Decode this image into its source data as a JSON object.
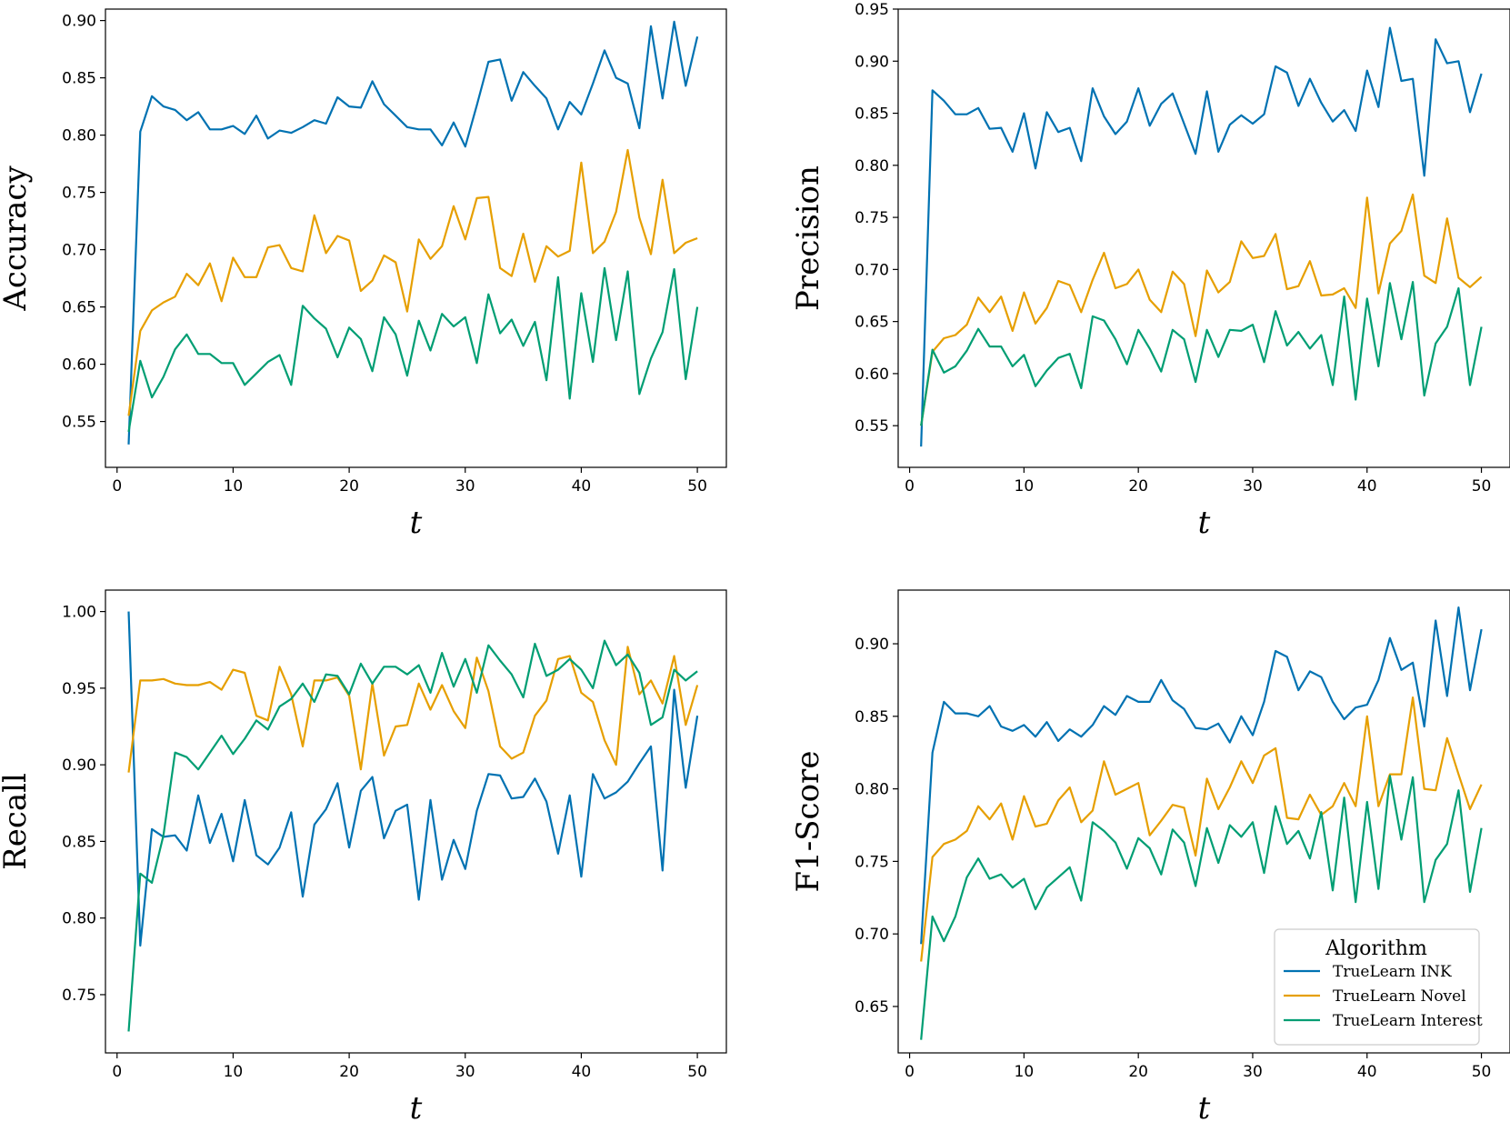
{
  "legend": {
    "title": "Algorithm",
    "panel": 3,
    "placement": "lower-right"
  },
  "chart_data": [
    {
      "type": "line",
      "ylabel": "Accuracy",
      "xlabel": "t",
      "xlim": [
        -1,
        52.5
      ],
      "ylim": [
        0.51,
        0.91
      ],
      "xticks": [
        "0",
        "10",
        "20",
        "30",
        "40",
        "50"
      ],
      "yticks": [
        "0.55",
        "0.60",
        "0.65",
        "0.70",
        "0.75",
        "0.80",
        "0.85",
        "0.90"
      ],
      "series": [
        {
          "name": "TrueLearn INK",
          "color": "#0072b2",
          "values": [
            0.53,
            0.803,
            0.834,
            0.825,
            0.822,
            0.813,
            0.82,
            0.805,
            0.805,
            0.808,
            0.801,
            0.817,
            0.797,
            0.804,
            0.802,
            0.807,
            0.813,
            0.81,
            0.833,
            0.825,
            0.824,
            0.847,
            0.827,
            0.817,
            0.807,
            0.805,
            0.805,
            0.791,
            0.811,
            0.79,
            0.826,
            0.864,
            0.866,
            0.83,
            0.855,
            0.843,
            0.832,
            0.805,
            0.829,
            0.818,
            0.845,
            0.874,
            0.85,
            0.845,
            0.806,
            0.895,
            0.832,
            0.899,
            0.843,
            0.886
          ]
        },
        {
          "name": "TrueLearn Novel",
          "color": "#e69f00",
          "values": [
            0.555,
            0.629,
            0.647,
            0.654,
            0.659,
            0.679,
            0.669,
            0.688,
            0.655,
            0.693,
            0.676,
            0.676,
            0.702,
            0.704,
            0.684,
            0.681,
            0.73,
            0.697,
            0.712,
            0.708,
            0.664,
            0.673,
            0.695,
            0.689,
            0.646,
            0.709,
            0.692,
            0.703,
            0.738,
            0.709,
            0.745,
            0.746,
            0.684,
            0.677,
            0.714,
            0.672,
            0.703,
            0.694,
            0.699,
            0.776,
            0.697,
            0.707,
            0.733,
            0.787,
            0.728,
            0.696,
            0.761,
            0.697,
            0.706,
            0.71
          ]
        },
        {
          "name": "TrueLearn Interest",
          "color": "#009e73",
          "values": [
            0.541,
            0.603,
            0.571,
            0.589,
            0.613,
            0.626,
            0.609,
            0.609,
            0.601,
            0.601,
            0.582,
            0.592,
            0.602,
            0.608,
            0.582,
            0.651,
            0.64,
            0.631,
            0.606,
            0.632,
            0.622,
            0.594,
            0.641,
            0.626,
            0.59,
            0.638,
            0.612,
            0.644,
            0.633,
            0.641,
            0.601,
            0.661,
            0.627,
            0.639,
            0.616,
            0.637,
            0.586,
            0.676,
            0.57,
            0.662,
            0.602,
            0.684,
            0.621,
            0.681,
            0.574,
            0.605,
            0.628,
            0.683,
            0.587,
            0.65
          ]
        }
      ]
    },
    {
      "type": "line",
      "ylabel": "Precision",
      "xlabel": "t",
      "xlim": [
        -1,
        52.5
      ],
      "ylim": [
        0.51,
        0.95
      ],
      "xticks": [
        "0",
        "10",
        "20",
        "30",
        "40",
        "50"
      ],
      "yticks": [
        "0.55",
        "0.60",
        "0.65",
        "0.70",
        "0.75",
        "0.80",
        "0.85",
        "0.90",
        "0.95"
      ],
      "series": [
        {
          "name": "TrueLearn INK",
          "color": "#0072b2",
          "values": [
            0.53,
            0.872,
            0.862,
            0.849,
            0.849,
            0.855,
            0.835,
            0.836,
            0.813,
            0.85,
            0.797,
            0.851,
            0.832,
            0.836,
            0.804,
            0.874,
            0.847,
            0.83,
            0.842,
            0.874,
            0.838,
            0.859,
            0.869,
            0.84,
            0.811,
            0.871,
            0.813,
            0.839,
            0.848,
            0.84,
            0.849,
            0.895,
            0.889,
            0.857,
            0.883,
            0.86,
            0.842,
            0.853,
            0.833,
            0.891,
            0.856,
            0.932,
            0.881,
            0.883,
            0.79,
            0.921,
            0.898,
            0.9,
            0.851,
            0.888
          ]
        },
        {
          "name": "TrueLearn Novel",
          "color": "#e69f00",
          "values": [
            0.55,
            0.621,
            0.634,
            0.637,
            0.647,
            0.673,
            0.659,
            0.674,
            0.641,
            0.678,
            0.648,
            0.663,
            0.689,
            0.685,
            0.659,
            0.69,
            0.716,
            0.682,
            0.686,
            0.7,
            0.671,
            0.659,
            0.698,
            0.686,
            0.636,
            0.699,
            0.678,
            0.688,
            0.727,
            0.711,
            0.713,
            0.734,
            0.681,
            0.684,
            0.708,
            0.675,
            0.676,
            0.682,
            0.663,
            0.769,
            0.677,
            0.725,
            0.737,
            0.772,
            0.694,
            0.687,
            0.749,
            0.692,
            0.683,
            0.693
          ]
        },
        {
          "name": "TrueLearn Interest",
          "color": "#009e73",
          "values": [
            0.55,
            0.623,
            0.601,
            0.607,
            0.622,
            0.643,
            0.626,
            0.626,
            0.607,
            0.618,
            0.588,
            0.603,
            0.615,
            0.619,
            0.586,
            0.655,
            0.651,
            0.633,
            0.609,
            0.642,
            0.624,
            0.602,
            0.642,
            0.633,
            0.592,
            0.642,
            0.616,
            0.642,
            0.641,
            0.647,
            0.611,
            0.66,
            0.627,
            0.64,
            0.624,
            0.637,
            0.589,
            0.674,
            0.575,
            0.672,
            0.607,
            0.687,
            0.633,
            0.688,
            0.579,
            0.629,
            0.645,
            0.682,
            0.589,
            0.645
          ]
        }
      ]
    },
    {
      "type": "line",
      "ylabel": "Recall",
      "xlabel": "t",
      "xlim": [
        -1,
        52.5
      ],
      "ylim": [
        0.712,
        1.014
      ],
      "xticks": [
        "0",
        "10",
        "20",
        "30",
        "40",
        "50"
      ],
      "yticks": [
        "0.75",
        "0.80",
        "0.85",
        "0.90",
        "0.95",
        "1.00"
      ],
      "series": [
        {
          "name": "TrueLearn INK",
          "color": "#0072b2",
          "values": [
            1.0,
            0.782,
            0.858,
            0.853,
            0.854,
            0.844,
            0.88,
            0.849,
            0.868,
            0.837,
            0.877,
            0.841,
            0.835,
            0.846,
            0.869,
            0.814,
            0.861,
            0.871,
            0.888,
            0.846,
            0.883,
            0.892,
            0.852,
            0.87,
            0.874,
            0.812,
            0.877,
            0.825,
            0.851,
            0.832,
            0.87,
            0.894,
            0.893,
            0.878,
            0.879,
            0.891,
            0.876,
            0.842,
            0.88,
            0.827,
            0.894,
            0.878,
            0.882,
            0.889,
            0.901,
            0.912,
            0.831,
            0.949,
            0.885,
            0.932
          ]
        },
        {
          "name": "TrueLearn Novel",
          "color": "#e69f00",
          "values": [
            0.895,
            0.955,
            0.955,
            0.956,
            0.953,
            0.952,
            0.952,
            0.954,
            0.949,
            0.962,
            0.96,
            0.932,
            0.929,
            0.964,
            0.946,
            0.912,
            0.955,
            0.955,
            0.957,
            0.945,
            0.897,
            0.953,
            0.906,
            0.925,
            0.926,
            0.953,
            0.936,
            0.952,
            0.935,
            0.924,
            0.97,
            0.948,
            0.912,
            0.904,
            0.908,
            0.932,
            0.942,
            0.969,
            0.971,
            0.947,
            0.941,
            0.916,
            0.9,
            0.977,
            0.946,
            0.955,
            0.94,
            0.971,
            0.926,
            0.952
          ]
        },
        {
          "name": "TrueLearn Interest",
          "color": "#009e73",
          "values": [
            0.726,
            0.829,
            0.823,
            0.854,
            0.908,
            0.905,
            0.897,
            0.908,
            0.919,
            0.907,
            0.917,
            0.929,
            0.923,
            0.938,
            0.943,
            0.953,
            0.941,
            0.959,
            0.958,
            0.946,
            0.966,
            0.953,
            0.964,
            0.964,
            0.959,
            0.965,
            0.947,
            0.973,
            0.951,
            0.969,
            0.947,
            0.978,
            0.968,
            0.959,
            0.944,
            0.979,
            0.958,
            0.962,
            0.969,
            0.962,
            0.95,
            0.981,
            0.965,
            0.972,
            0.96,
            0.926,
            0.931,
            0.962,
            0.955,
            0.961
          ]
        }
      ]
    },
    {
      "type": "line",
      "ylabel": "F1-Score",
      "xlabel": "t",
      "xlim": [
        -1,
        52.5
      ],
      "ylim": [
        0.618,
        0.937
      ],
      "xticks": [
        "0",
        "10",
        "20",
        "30",
        "40",
        "50"
      ],
      "yticks": [
        "0.65",
        "0.70",
        "0.75",
        "0.80",
        "0.85",
        "0.90"
      ],
      "series": [
        {
          "name": "TrueLearn INK",
          "color": "#0072b2",
          "values": [
            0.693,
            0.825,
            0.86,
            0.852,
            0.852,
            0.85,
            0.857,
            0.843,
            0.84,
            0.844,
            0.836,
            0.846,
            0.833,
            0.841,
            0.836,
            0.844,
            0.857,
            0.851,
            0.864,
            0.86,
            0.86,
            0.875,
            0.861,
            0.855,
            0.842,
            0.841,
            0.845,
            0.832,
            0.85,
            0.837,
            0.86,
            0.895,
            0.891,
            0.868,
            0.881,
            0.877,
            0.86,
            0.848,
            0.856,
            0.858,
            0.875,
            0.904,
            0.882,
            0.887,
            0.843,
            0.916,
            0.864,
            0.925,
            0.868,
            0.91
          ]
        },
        {
          "name": "TrueLearn Novel",
          "color": "#e69f00",
          "values": [
            0.681,
            0.753,
            0.762,
            0.765,
            0.771,
            0.788,
            0.779,
            0.79,
            0.765,
            0.795,
            0.774,
            0.776,
            0.792,
            0.801,
            0.777,
            0.785,
            0.819,
            0.796,
            0.8,
            0.804,
            0.768,
            0.778,
            0.789,
            0.787,
            0.754,
            0.807,
            0.786,
            0.801,
            0.819,
            0.804,
            0.823,
            0.828,
            0.78,
            0.779,
            0.796,
            0.782,
            0.788,
            0.804,
            0.788,
            0.85,
            0.788,
            0.81,
            0.81,
            0.863,
            0.8,
            0.799,
            0.835,
            0.81,
            0.786,
            0.803
          ]
        },
        {
          "name": "TrueLearn Interest",
          "color": "#009e73",
          "values": [
            0.627,
            0.712,
            0.695,
            0.712,
            0.739,
            0.752,
            0.738,
            0.741,
            0.732,
            0.738,
            0.717,
            0.732,
            0.739,
            0.746,
            0.723,
            0.777,
            0.771,
            0.763,
            0.745,
            0.766,
            0.759,
            0.741,
            0.772,
            0.763,
            0.733,
            0.773,
            0.749,
            0.775,
            0.767,
            0.777,
            0.742,
            0.788,
            0.762,
            0.771,
            0.752,
            0.784,
            0.73,
            0.794,
            0.722,
            0.791,
            0.731,
            0.809,
            0.765,
            0.808,
            0.722,
            0.751,
            0.762,
            0.799,
            0.729,
            0.773
          ]
        }
      ]
    }
  ]
}
